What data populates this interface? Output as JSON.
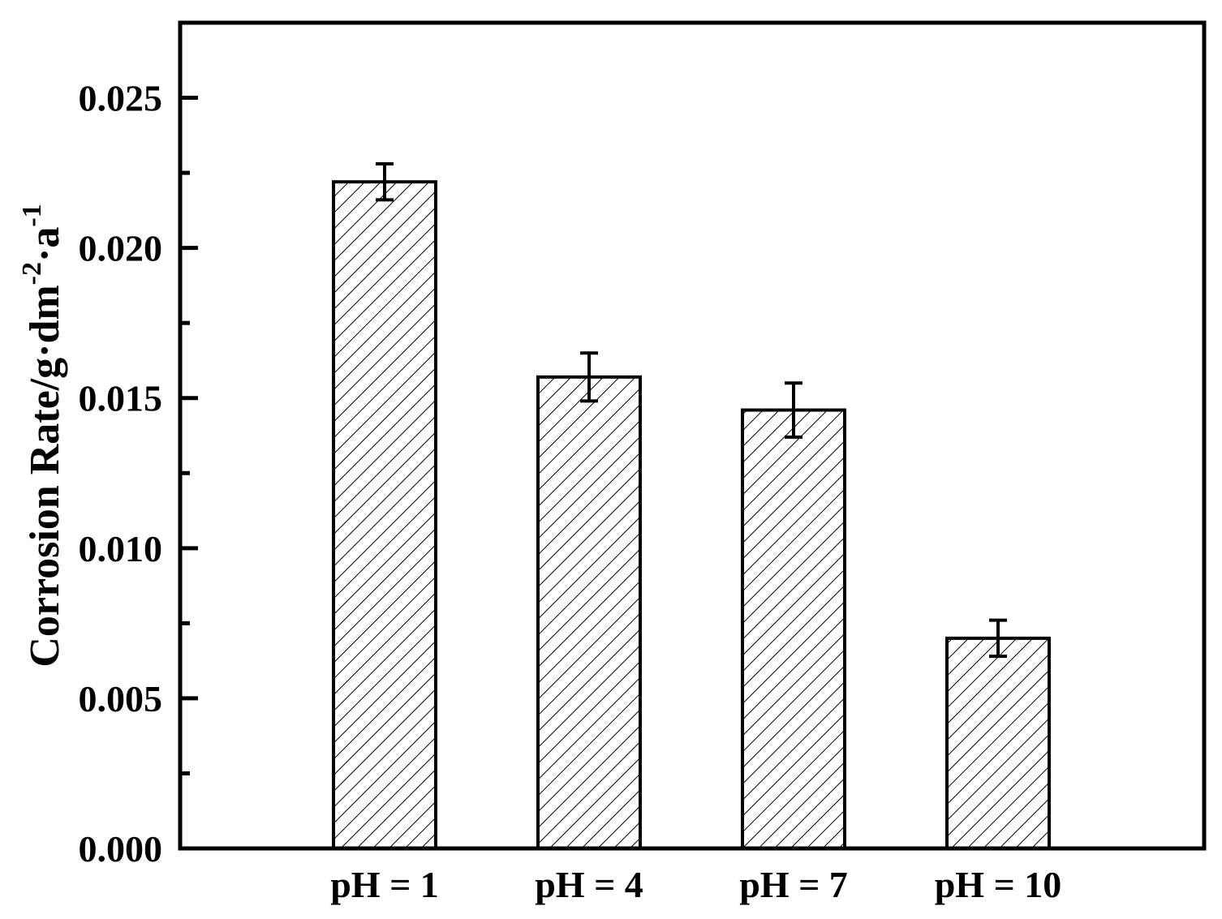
{
  "chart_data": {
    "type": "bar",
    "categories": [
      "pH = 1",
      "pH = 4",
      "pH = 7",
      "pH = 10"
    ],
    "values": [
      0.0222,
      0.0157,
      0.0146,
      0.007
    ],
    "errors": [
      0.0006,
      0.0008,
      0.0009,
      0.0006
    ],
    "title": "",
    "xlabel": "",
    "ylabel": {
      "base": "Corrosion Rate/g·dm",
      "sup1": "-2",
      "mid": "·a",
      "sup2": "-1"
    },
    "ylim": [
      0,
      0.0275
    ],
    "yticks": [
      "0.000",
      "0.005",
      "0.010",
      "0.015",
      "0.020",
      "0.025"
    ],
    "ytick_values": [
      0,
      0.005,
      0.01,
      0.015,
      0.02,
      0.025
    ],
    "minor_tick_values": [
      0.0025,
      0.0075,
      0.0125,
      0.0175,
      0.0225
    ],
    "bar_fill": "hatched",
    "bar_color": "#000000",
    "grid": false,
    "legend": "none"
  }
}
